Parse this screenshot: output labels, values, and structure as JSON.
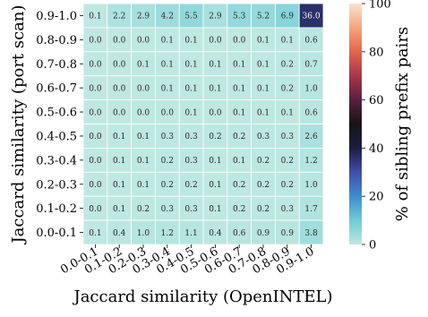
{
  "chart_data": {
    "type": "heatmap",
    "xlabel": "Jaccard similarity (OpenINTEL)",
    "ylabel": "Jaccard similarity (port scan)",
    "colorbar_label": "% of sibling prefix pairs",
    "x_categories": [
      "0.0-0.1",
      "0.1-0.2",
      "0.2-0.3",
      "0.3-0.4",
      "0.4-0.5",
      "0.5-0.6",
      "0.6-0.7",
      "0.7-0.8",
      "0.8-0.9",
      "0.9-1.0"
    ],
    "y_categories": [
      "0.9-1.0",
      "0.8-0.9",
      "0.7-0.8",
      "0.6-0.7",
      "0.5-0.6",
      "0.4-0.5",
      "0.3-0.4",
      "0.2-0.3",
      "0.1-0.2",
      "0.0-0.1"
    ],
    "values": [
      [
        0.1,
        2.2,
        2.9,
        4.2,
        5.5,
        2.9,
        5.3,
        5.2,
        6.9,
        36.0
      ],
      [
        0.0,
        0.0,
        0.0,
        0.1,
        0.1,
        0.0,
        0.0,
        0.1,
        0.1,
        0.6
      ],
      [
        0.0,
        0.0,
        0.1,
        0.1,
        0.1,
        0.1,
        0.1,
        0.1,
        0.2,
        0.7
      ],
      [
        0.0,
        0.0,
        0.0,
        0.1,
        0.1,
        0.1,
        0.1,
        0.1,
        0.2,
        1.0
      ],
      [
        0.0,
        0.0,
        0.0,
        0.0,
        0.1,
        0.0,
        0.1,
        0.1,
        0.1,
        0.6
      ],
      [
        0.0,
        0.1,
        0.1,
        0.3,
        0.3,
        0.2,
        0.2,
        0.3,
        0.3,
        2.6
      ],
      [
        0.0,
        0.1,
        0.1,
        0.2,
        0.3,
        0.1,
        0.1,
        0.2,
        0.2,
        1.2
      ],
      [
        0.0,
        0.1,
        0.1,
        0.2,
        0.2,
        0.1,
        0.2,
        0.2,
        0.2,
        1.0
      ],
      [
        0.0,
        0.1,
        0.2,
        0.3,
        0.3,
        0.1,
        0.2,
        0.2,
        0.3,
        1.7
      ],
      [
        0.1,
        0.4,
        1.0,
        1.2,
        1.1,
        0.4,
        0.6,
        0.9,
        0.9,
        3.8
      ]
    ],
    "value_format": "one decimal",
    "colorscale_range": [
      0,
      100
    ],
    "colorbar_ticks": [
      0,
      20,
      40,
      60,
      80,
      100
    ],
    "colorbar_ticks_labels": [
      "0",
      "20",
      "40",
      "60",
      "80",
      "100"
    ],
    "colormap": "icefire",
    "colormap_stops": [
      "#bfe8e1",
      "#6ecbd6",
      "#3f8dcf",
      "#3f4fa8",
      "#1c1c42",
      "#151515",
      "#5a1f3f",
      "#a9364c",
      "#e2664b",
      "#f7a47e",
      "#fbe2d1"
    ],
    "grid": false,
    "legend": "colorbar-right"
  }
}
